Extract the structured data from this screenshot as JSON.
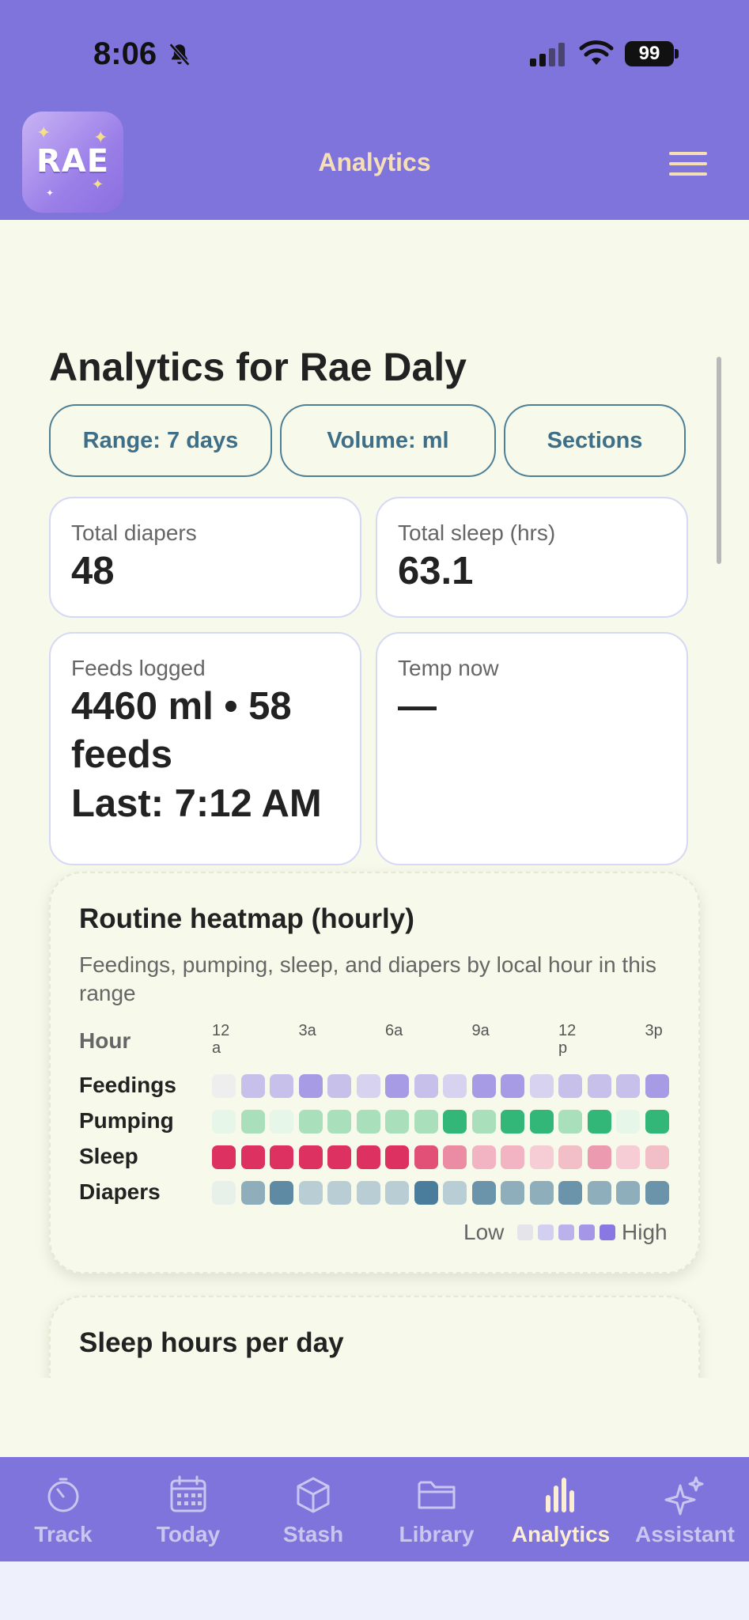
{
  "status_bar": {
    "time": "8:06",
    "battery": "99"
  },
  "header": {
    "logo_text": "RAE",
    "title": "Analytics"
  },
  "page": {
    "title": "Analytics for Rae Daly"
  },
  "filters": [
    {
      "label": "Range: 7 days"
    },
    {
      "label": "Volume: ml"
    },
    {
      "label": "Sections"
    }
  ],
  "stats": {
    "total_diapers": {
      "label": "Total diapers",
      "value": "48"
    },
    "total_sleep": {
      "label": "Total sleep (hrs)",
      "value": "63.1"
    },
    "feeds": {
      "label": "Feeds logged",
      "value_line1": "4460 ml • 58",
      "value_line2": "feeds",
      "value_line3": "Last: 7:12 AM"
    },
    "temp": {
      "label": "Temp now",
      "value": "—"
    }
  },
  "heatmap": {
    "title": "Routine heatmap (hourly)",
    "subtitle": "Feedings, pumping, sleep, and diapers by local hour in this range",
    "hour_header": "Hour",
    "hour_ticks": [
      {
        "l1": "12",
        "l2": "a"
      },
      {
        "l1": "3a",
        "l2": ""
      },
      {
        "l1": "6a",
        "l2": ""
      },
      {
        "l1": "9a",
        "l2": ""
      },
      {
        "l1": "12",
        "l2": "p"
      },
      {
        "l1": "3p",
        "l2": ""
      }
    ],
    "rows": [
      {
        "label": "Feedings",
        "colors": [
          "#eeeeee",
          "#c7c0ea",
          "#c7c0ea",
          "#a79be6",
          "#c7c0ea",
          "#d6d2ef",
          "#a79be6",
          "#c7c0ea",
          "#d6d2ef",
          "#a79be6",
          "#a79be6",
          "#d6d2ef",
          "#c7c0ea",
          "#c7c0ea",
          "#c7c0ea",
          "#a79be6"
        ]
      },
      {
        "label": "Pumping",
        "colors": [
          "#e6f6e9",
          "#a9e0bb",
          "#e6f6e9",
          "#a9e0bb",
          "#a9e0bb",
          "#a9e0bb",
          "#a9e0bb",
          "#a9e0bb",
          "#33b779",
          "#a9e0bb",
          "#33b779",
          "#33b779",
          "#a9e0bb",
          "#33b779",
          "#e6f6e9",
          "#33b779"
        ]
      },
      {
        "label": "Sleep",
        "colors": [
          "#dc3161",
          "#dc3161",
          "#dc3161",
          "#dc3161",
          "#dc3161",
          "#dc3161",
          "#dc3161",
          "#e25078",
          "#ec8ca4",
          "#f2b4c2",
          "#f2b4c2",
          "#f7cdd5",
          "#f2bfc9",
          "#ec9aaf",
          "#f7cdd5",
          "#f2bfc9"
        ]
      },
      {
        "label": "Diapers",
        "colors": [
          "#e7f1ea",
          "#8eaebc",
          "#5e8aa3",
          "#b8ced4",
          "#b8ced4",
          "#b8ced4",
          "#b8ced4",
          "#4a7d9c",
          "#b8ced4",
          "#6b93a9",
          "#8eaebc",
          "#8eaebc",
          "#6b93a9",
          "#8eaebc",
          "#8eaebc",
          "#6b93a9"
        ]
      }
    ],
    "legend": {
      "low": "Low",
      "high": "High",
      "colors": [
        "#e4e4ea",
        "#d3cff0",
        "#bbb2ec",
        "#a596e8",
        "#8a78e2"
      ]
    }
  },
  "sleep_card": {
    "title": "Sleep hours per day"
  },
  "nav": [
    {
      "label": "Track",
      "icon": "stopwatch-icon",
      "active": false
    },
    {
      "label": "Today",
      "icon": "calendar-icon",
      "active": false
    },
    {
      "label": "Stash",
      "icon": "box-icon",
      "active": false
    },
    {
      "label": "Library",
      "icon": "folder-icon",
      "active": false
    },
    {
      "label": "Analytics",
      "icon": "bar-chart-icon",
      "active": true
    },
    {
      "label": "Assistant",
      "icon": "sparkles-icon",
      "active": false
    }
  ],
  "colors": {
    "brand": "#7f73dc",
    "header_text": "#f7dfb5",
    "background": "#f7f9ea",
    "pill_border": "#4d7f96"
  }
}
